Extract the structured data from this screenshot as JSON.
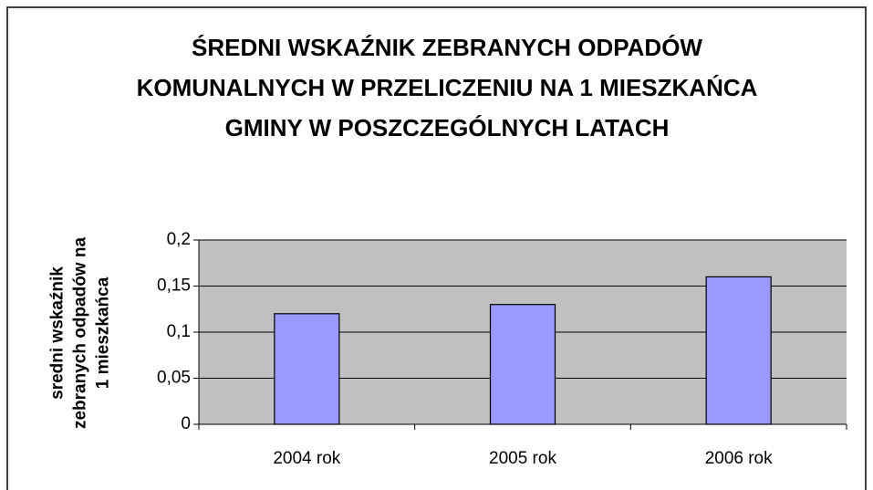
{
  "chart_data": {
    "type": "bar",
    "title": "ŚREDNI WSKAŹNIK ZEBRANYCH ODPADÓW KOMUNALNYCH W PRZELICZENIU NA 1 MIESZKAŃCA GMINY W POSZCZEGÓLNYCH LATACH",
    "y_label": "sredni wskaźnik zebranych odpadów na 1 mieszkańca",
    "categories": [
      "2004 rok",
      "2005 rok",
      "2006 rok"
    ],
    "values": [
      0.12,
      0.13,
      0.16
    ],
    "color": "#9999ff",
    "ylim": [
      0,
      0.2
    ],
    "yticks": [
      0,
      {
        "value": 0.05,
        "label": "0,05"
      },
      {
        "value": 0.1,
        "label": "0,1"
      },
      {
        "value": 0.15,
        "label": "0,15"
      },
      {
        "value": 0.2,
        "label": "0,2"
      }
    ],
    "grid": true
  }
}
